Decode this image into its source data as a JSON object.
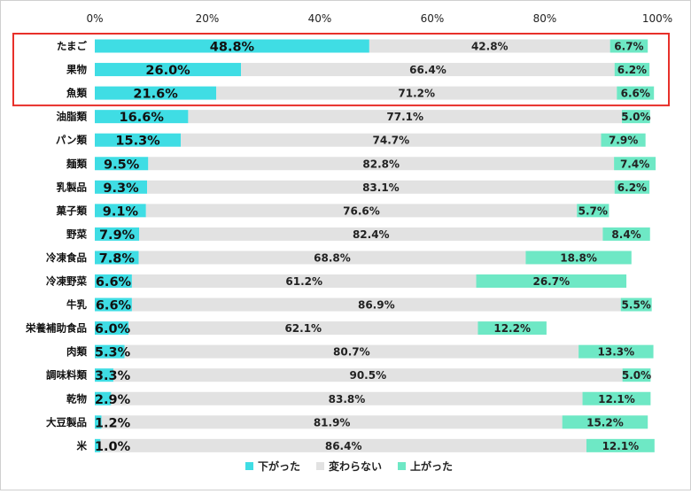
{
  "chart_data": {
    "type": "bar",
    "stacked": true,
    "orientation": "horizontal",
    "title": "",
    "xlim": [
      0,
      100
    ],
    "x_ticks": [
      "0%",
      "20%",
      "40%",
      "60%",
      "80%",
      "100%"
    ],
    "categories": [
      "たまご",
      "果物",
      "魚類",
      "油脂類",
      "パン類",
      "麺類",
      "乳製品",
      "菓子類",
      "野菜",
      "冷凍食品",
      "冷凍野菜",
      "牛乳",
      "栄養補助食品",
      "肉類",
      "調味料類",
      "乾物",
      "大豆製品",
      "米"
    ],
    "series": [
      {
        "name": "下がった",
        "color": "#3fdde4",
        "values": [
          48.8,
          26.0,
          21.6,
          16.6,
          15.3,
          9.5,
          9.3,
          9.1,
          7.9,
          7.8,
          6.6,
          6.6,
          6.0,
          5.3,
          3.3,
          2.9,
          1.2,
          1.0
        ],
        "labels": [
          "48.8%",
          "26.0%",
          "21.6%",
          "16.6%",
          "15.3%",
          "9.5%",
          "9.3%",
          "9.1%",
          "7.9%",
          "7.8%",
          "6.6%",
          "6.6%",
          "6.0%",
          "5.3%",
          "3.3%",
          "2.9%",
          "1.2%",
          "1.0%"
        ]
      },
      {
        "name": "変わらない",
        "color": "#e2e2e2",
        "values": [
          42.8,
          66.4,
          71.2,
          77.1,
          74.7,
          82.8,
          83.1,
          76.6,
          82.4,
          68.8,
          61.2,
          86.9,
          62.1,
          80.7,
          90.5,
          83.8,
          81.9,
          86.4
        ],
        "labels": [
          "42.8%",
          "66.4%",
          "71.2%",
          "77.1%",
          "74.7%",
          "82.8%",
          "83.1%",
          "76.6%",
          "82.4%",
          "68.8%",
          "61.2%",
          "86.9%",
          "62.1%",
          "80.7%",
          "90.5%",
          "83.8%",
          "81.9%",
          "86.4%"
        ]
      },
      {
        "name": "上がった",
        "color": "#6ee8c5",
        "values": [
          6.7,
          6.2,
          6.6,
          5.0,
          7.9,
          7.4,
          6.2,
          5.7,
          8.4,
          18.8,
          26.7,
          5.5,
          12.2,
          13.3,
          5.0,
          12.1,
          15.2,
          12.1
        ],
        "labels": [
          "6.7%",
          "6.2%",
          "6.6%",
          "5.0%",
          "7.9%",
          "7.4%",
          "6.2%",
          "5.7%",
          "8.4%",
          "18.8%",
          "26.7%",
          "5.5%",
          "12.2%",
          "13.3%",
          "5.0%",
          "12.1%",
          "15.2%",
          "12.1%"
        ]
      }
    ],
    "highlight": {
      "categories": [
        "たまご",
        "果物",
        "魚類"
      ],
      "color": "#e8302a"
    },
    "legend": "bottom-center"
  }
}
